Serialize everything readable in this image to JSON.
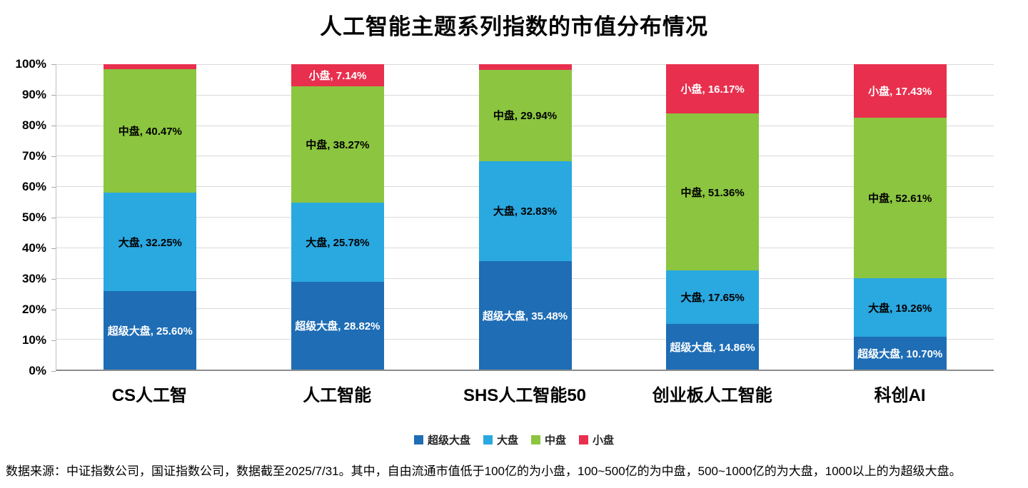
{
  "chart_data": {
    "type": "bar",
    "subtype": "stacked-100-percent",
    "title": "人工智能主题系列指数的市值分布情况",
    "categories": [
      "CS人工智",
      "人工智能",
      "SHS人工智能50",
      "创业板人工智能",
      "科创AI"
    ],
    "series": [
      {
        "name": "超级大盘",
        "color": "#1E6DB5",
        "label_color": "#FFFFFF",
        "values": [
          25.6,
          28.82,
          35.48,
          14.86,
          10.7
        ],
        "labels_shown": [
          true,
          true,
          true,
          true,
          true
        ]
      },
      {
        "name": "大盘",
        "color": "#2AA8E0",
        "label_color": "#000000",
        "values": [
          32.25,
          25.78,
          32.83,
          17.65,
          19.26
        ],
        "labels_shown": [
          true,
          true,
          true,
          true,
          true
        ]
      },
      {
        "name": "中盘",
        "color": "#8CC540",
        "label_color": "#000000",
        "values": [
          40.47,
          38.27,
          29.94,
          51.36,
          52.61
        ],
        "labels_shown": [
          true,
          true,
          true,
          true,
          true
        ]
      },
      {
        "name": "小盘",
        "color": "#E8304E",
        "label_color": "#FFFFFF",
        "values": [
          1.68,
          7.14,
          1.75,
          16.17,
          17.43
        ],
        "labels_shown": [
          false,
          true,
          false,
          true,
          true
        ]
      }
    ],
    "y_axis": {
      "min": 0,
      "max": 100,
      "step": 10,
      "ticks": [
        "0%",
        "10%",
        "20%",
        "30%",
        "40%",
        "50%",
        "60%",
        "70%",
        "80%",
        "90%",
        "100%"
      ]
    },
    "legend": {
      "position": "bottom",
      "items": [
        "超级大盘",
        "大盘",
        "中盘",
        "小盘"
      ]
    },
    "grid": true,
    "label_format": "{series}, {value}%"
  },
  "footer": {
    "text": "数据来源：中证指数公司，国证指数公司，数据截至2025/7/31。其中，自由流通市值低于100亿的为小盘，100~500亿的为中盘，500~1000亿的为大盘，1000以上的为超级大盘。"
  }
}
